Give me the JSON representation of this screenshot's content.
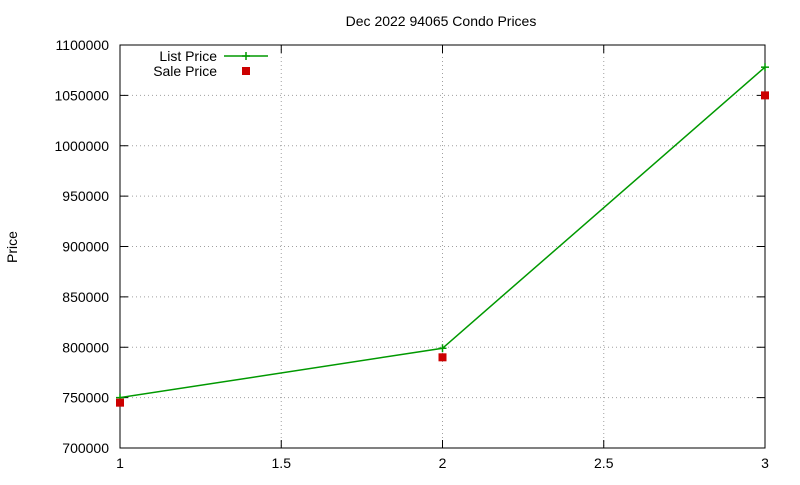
{
  "chart_data": {
    "type": "line",
    "title": "Dec 2022 94065 Condo Prices",
    "xlabel": "",
    "ylabel": "Price",
    "xlim": [
      1,
      3
    ],
    "ylim": [
      700000,
      1100000
    ],
    "x_ticks": [
      1,
      1.5,
      2,
      2.5,
      3
    ],
    "x_tick_labels": [
      "1",
      "1.5",
      "2",
      "2.5",
      "3"
    ],
    "y_ticks": [
      700000,
      750000,
      800000,
      850000,
      900000,
      950000,
      1000000,
      1050000,
      1100000
    ],
    "y_tick_labels": [
      "700000",
      "750000",
      "800000",
      "850000",
      "900000",
      "950000",
      "1000000",
      "1050000",
      "1100000"
    ],
    "grid": true,
    "legend_position": "top-left",
    "series": [
      {
        "name": "List Price",
        "style": "line-with-plus-markers",
        "color": "#009900",
        "x": [
          1,
          2,
          3
        ],
        "y": [
          750000,
          799000,
          1078000
        ]
      },
      {
        "name": "Sale Price",
        "style": "square-points",
        "color": "#cc0000",
        "x": [
          1,
          2,
          3
        ],
        "y": [
          745000,
          790000,
          1050000
        ]
      }
    ]
  }
}
